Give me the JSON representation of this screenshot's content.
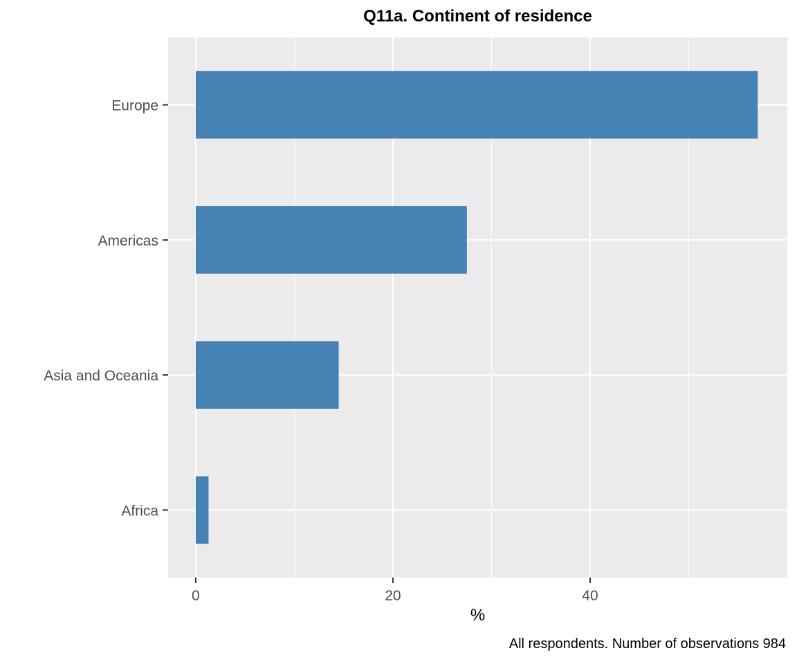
{
  "chart_data": {
    "type": "bar",
    "orientation": "horizontal",
    "title": "Q11a. Continent of residence",
    "xlabel": "%",
    "ylabel": "",
    "caption": "All respondents. Number of observations 984",
    "categories": [
      "Europe",
      "Americas",
      "Asia and Oceania",
      "Africa"
    ],
    "values": [
      57.0,
      27.5,
      14.5,
      1.3
    ],
    "xlim": [
      -2.8,
      60
    ],
    "xticks": [
      0,
      20,
      40
    ],
    "grid": true,
    "legend": "none",
    "colors": {
      "bar": "#4682B4",
      "panel": "#EBEBEB",
      "grid": "#FFFFFF",
      "tick_text": "#4D4D4D"
    }
  }
}
